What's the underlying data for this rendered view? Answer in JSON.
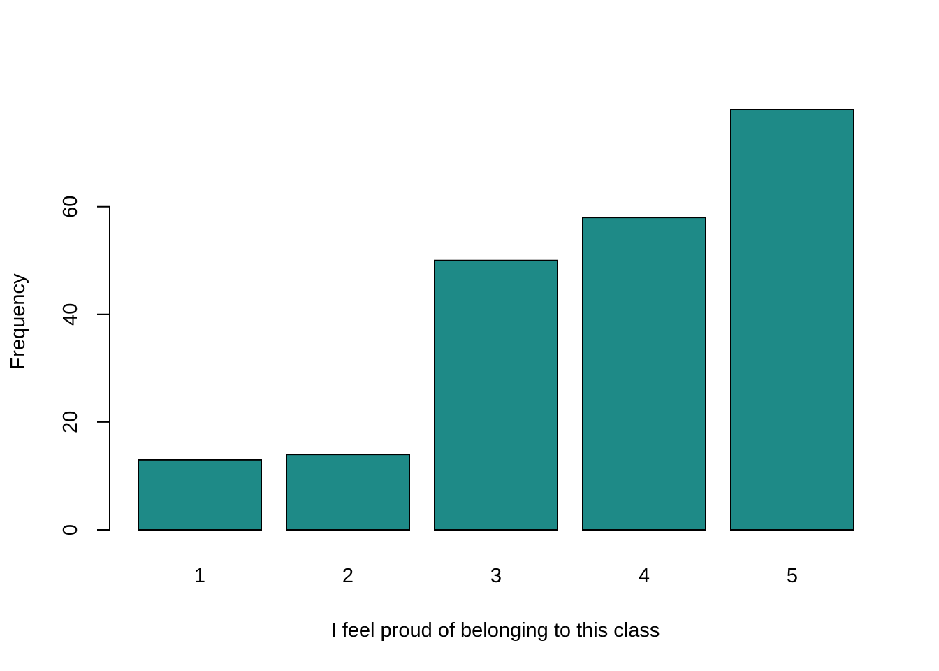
{
  "chart_data": {
    "type": "bar",
    "title": "",
    "xlabel": "I feel proud of belonging to this class",
    "ylabel": "Frequency",
    "categories": [
      "1",
      "2",
      "3",
      "4",
      "5"
    ],
    "values": [
      13,
      14,
      50,
      58,
      78
    ],
    "ylim": [
      0,
      78
    ],
    "y_ticks": [
      0,
      20,
      40,
      60
    ],
    "y_tick_labels": [
      "0",
      "20",
      "40",
      "60"
    ],
    "grid": false,
    "legend": "none",
    "colors": {
      "bar_fill": "#1e8a87",
      "bar_stroke": "#000000",
      "axis": "#000000",
      "text": "#000000"
    }
  }
}
